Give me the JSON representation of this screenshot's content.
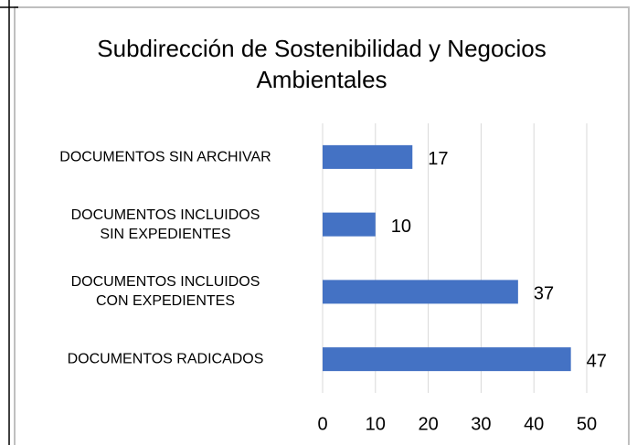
{
  "chart_data": {
    "type": "bar",
    "orientation": "horizontal",
    "title": "Subdirección de Sostenibilidad y Negocios\nAmbientales",
    "categories": [
      "DOCUMENTOS SIN ARCHIVAR",
      "DOCUMENTOS INCLUIDOS\nSIN EXPEDIENTES",
      "DOCUMENTOS INCLUIDOS\nCON EXPEDIENTES",
      "DOCUMENTOS RADICADOS"
    ],
    "values": [
      17,
      10,
      37,
      47
    ],
    "color": "#4472c4",
    "xlim": [
      0,
      50
    ],
    "xticks": [
      0,
      10,
      20,
      30,
      40,
      50
    ],
    "grid": true
  }
}
